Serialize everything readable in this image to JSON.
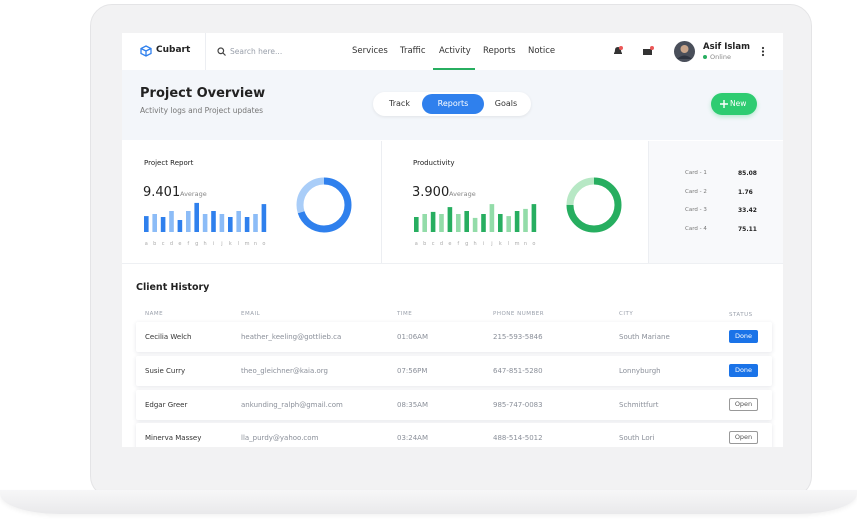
{
  "brand": "Cubart",
  "search_placeholder": "Search here...",
  "nav": [
    "Services",
    "Traffic",
    "Activity",
    "Reports",
    "Notice"
  ],
  "user": {
    "name": "Asif Islam",
    "status": "Online"
  },
  "header": {
    "title": "Project Overview",
    "subtitle": "Activity logs and Project updates",
    "tabs": [
      "Track",
      "Reports",
      "Goals"
    ],
    "new_button": "New"
  },
  "chart_data": [
    {
      "type": "bar",
      "title": "Project Report",
      "average": "9.401",
      "average_label": "Average",
      "categories": [
        "a",
        "b",
        "c",
        "d",
        "e",
        "f",
        "g",
        "h",
        "i",
        "j",
        "k",
        "l",
        "m",
        "n",
        "o"
      ],
      "values": [
        5.3,
        6,
        5,
        7,
        4,
        7,
        9.7,
        6,
        7,
        6,
        5,
        7,
        5,
        6,
        9.3
      ],
      "colors": [
        "#2f80ed",
        "#8cbcf7"
      ],
      "ylim": [
        0,
        10
      ]
    },
    {
      "type": "pie",
      "values": [
        70,
        30
      ],
      "colors": [
        "#2f80ed",
        "#a9cdf8"
      ]
    },
    {
      "type": "bar",
      "title": "Productivity",
      "average": "3.900",
      "average_label": "Average",
      "categories": [
        "a",
        "b",
        "c",
        "d",
        "e",
        "f",
        "g",
        "h",
        "i",
        "j",
        "k",
        "l",
        "m",
        "n",
        "o"
      ],
      "values": [
        5,
        6,
        6.7,
        6,
        8.3,
        6,
        7,
        4.7,
        6,
        9.3,
        6,
        5.3,
        7,
        7.7,
        9.3
      ],
      "colors": [
        "#27ae60",
        "#93dca9"
      ],
      "ylim": [
        0,
        10
      ]
    },
    {
      "type": "pie",
      "values": [
        75,
        25
      ],
      "colors": [
        "#27ae60",
        "#b7e8c5"
      ]
    }
  ],
  "cards": [
    {
      "label": "Card - 1",
      "value": 85.08
    },
    {
      "label": "Card - 2",
      "value": 1.76
    },
    {
      "label": "Card - 3",
      "value": 33.42
    },
    {
      "label": "Card - 4",
      "value": 75.11
    }
  ],
  "client_history": {
    "title": "Client History",
    "columns": [
      "NAME",
      "EMAIL",
      "TIME",
      "PHONE NUMBER",
      "CITY",
      "STATUS"
    ],
    "rows": [
      [
        "Cecilia Welch",
        "heather_keeling@gottlieb.ca",
        "01:06AM",
        "215-593-5846",
        "South Mariane",
        "Done"
      ],
      [
        "Susie Curry",
        "theo_gleichner@kaia.org",
        "07:56PM",
        "647-851-5280",
        "Lonnyburgh",
        "Done"
      ],
      [
        "Edgar Greer",
        "ankunding_ralph@gmail.com",
        "08:35AM",
        "985-747-0083",
        "Schmittfurt",
        "Open"
      ],
      [
        "Minerva Massey",
        "lla_purdy@yahoo.com",
        "03:24AM",
        "488-514-5012",
        "South Lori",
        "Open"
      ]
    ]
  }
}
